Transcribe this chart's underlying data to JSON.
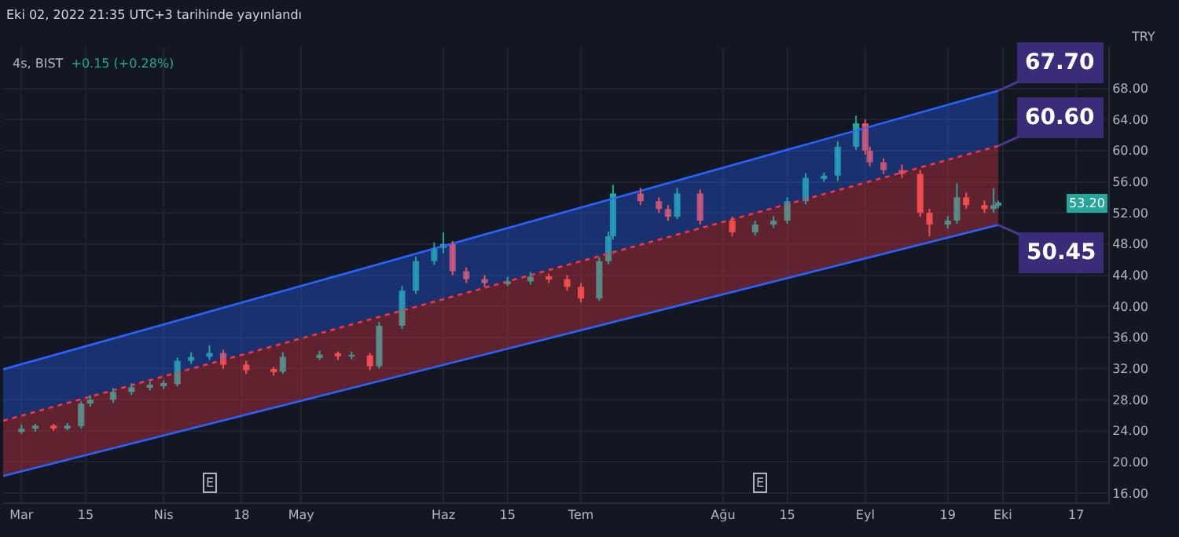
{
  "chart_data": {
    "type": "candlestick",
    "title": "4s, BIST",
    "subtitle": "+0.15 (+0.28%)",
    "ylabel": "TRY",
    "annotations": [
      "Eki 02, 2022 21:35 UTC+3 tarihinde yayınlandı",
      {
        "text": "67.70",
        "x": "2022-09-30",
        "y": 67.7
      },
      {
        "text": "60.60",
        "x": "2022-09-30",
        "y": 60.6
      },
      {
        "text": "50.45",
        "x": "2022-09-30",
        "y": 50.45
      },
      "53.20",
      {
        "text": "E",
        "x": "2022-04-11",
        "y": 17.4
      },
      {
        "text": "E",
        "x": "2022-08-09",
        "y": 17.4
      }
    ],
    "colors": [
      "#26a69a",
      "#26a69a",
      "#ef5350",
      "#26a69a",
      "#26a69a",
      "#26a69a",
      "#26a69a",
      "#26a69a",
      "#26a69a",
      "#26a69a",
      "#26a69a",
      "#26a69a",
      "#26a69a",
      "#ef5350",
      "#ef5350",
      "#ef5350",
      "#26a69a",
      "#26a69a",
      "#ef5350",
      "#26a69a",
      "#ef5350",
      "#26a69a",
      "#26a69a",
      "#26a69a",
      "#26a69a",
      "#26a69a",
      "#ef5350",
      "#ef5350",
      "#ef5350",
      "#26a69a",
      "#26a69a",
      "#ef5350",
      "#ef5350",
      "#ef5350",
      "#26a69a",
      "#26a69a",
      "#26a69a",
      "#ef5350",
      "#ef5350",
      "#ef5350",
      "#26a69a",
      "#ef5350",
      "#ef5350",
      "#26a69a",
      "#26a69a",
      "#26a69a",
      "#26a69a",
      "#26a69a",
      "#26a69a",
      "#26a69a",
      "#ef5350",
      "#ef5350",
      "#ef5350",
      "#ef5350",
      "#ef5350",
      "#ef5350",
      "#26a69a",
      "#26a69a",
      "#ef5350",
      "#ef5350",
      "#26a69a",
      "#26a69a"
    ],
    "x": [
      "2022-03-01",
      "2022-03-04",
      "2022-03-08",
      "2022-03-11",
      "2022-03-14",
      "2022-03-16",
      "2022-03-21",
      "2022-03-25",
      "2022-03-29",
      "2022-04-01",
      "2022-04-04",
      "2022-04-07",
      "2022-04-11",
      "2022-04-14",
      "2022-04-19",
      "2022-04-25",
      "2022-04-27",
      "2022-05-05",
      "2022-05-09",
      "2022-05-12",
      "2022-05-16",
      "2022-05-18",
      "2022-05-23",
      "2022-05-26",
      "2022-05-30",
      "2022-06-01",
      "2022-06-03",
      "2022-06-06",
      "2022-06-10",
      "2022-06-15",
      "2022-06-20",
      "2022-06-24",
      "2022-06-28",
      "2022-07-01",
      "2022-07-05",
      "2022-07-07",
      "2022-07-08",
      "2022-07-14",
      "2022-07-18",
      "2022-07-20",
      "2022-07-22",
      "2022-07-27",
      "2022-08-03",
      "2022-08-08",
      "2022-08-12",
      "2022-08-15",
      "2022-08-19",
      "2022-08-23",
      "2022-08-26",
      "2022-08-30",
      "2022-09-01",
      "2022-09-02",
      "2022-09-05",
      "2022-09-09",
      "2022-09-13",
      "2022-09-15",
      "2022-09-19",
      "2022-09-21",
      "2022-09-23",
      "2022-09-27",
      "2022-09-29",
      "2022-09-30"
    ],
    "ohlc": [
      [
        24.0,
        24.8,
        23.6,
        24.3
      ],
      [
        24.3,
        24.9,
        23.9,
        24.5
      ],
      [
        24.5,
        24.9,
        24.0,
        24.4
      ],
      [
        24.4,
        25.0,
        24.1,
        24.6
      ],
      [
        24.6,
        27.8,
        24.3,
        27.5
      ],
      [
        27.5,
        28.6,
        27.1,
        28.0
      ],
      [
        28.0,
        29.5,
        27.6,
        29.0
      ],
      [
        29.0,
        30.1,
        28.6,
        29.6
      ],
      [
        29.6,
        30.3,
        29.2,
        29.8
      ],
      [
        29.8,
        30.5,
        29.4,
        30.0
      ],
      [
        30.0,
        33.4,
        29.7,
        33.0
      ],
      [
        33.0,
        34.1,
        32.6,
        33.5
      ],
      [
        33.5,
        35.0,
        33.1,
        34.0
      ],
      [
        34.0,
        34.4,
        32.0,
        32.5
      ],
      [
        32.5,
        33.0,
        31.3,
        31.8
      ],
      [
        31.8,
        32.2,
        31.1,
        31.6
      ],
      [
        31.6,
        34.1,
        31.3,
        33.5
      ],
      [
        33.5,
        34.3,
        33.1,
        33.8
      ],
      [
        33.8,
        34.2,
        33.1,
        33.6
      ],
      [
        33.6,
        34.2,
        33.2,
        33.7
      ],
      [
        33.7,
        34.0,
        31.8,
        32.3
      ],
      [
        32.3,
        38.0,
        32.0,
        37.5
      ],
      [
        37.5,
        42.6,
        37.1,
        42.0
      ],
      [
        42.0,
        46.4,
        41.6,
        45.8
      ],
      [
        45.8,
        48.2,
        45.3,
        47.5
      ],
      [
        47.5,
        49.5,
        46.8,
        48.0
      ],
      [
        48.0,
        48.4,
        44.0,
        44.5
      ],
      [
        44.5,
        45.0,
        43.0,
        43.5
      ],
      [
        43.5,
        44.0,
        42.5,
        43.0
      ],
      [
        43.0,
        43.8,
        42.6,
        43.2
      ],
      [
        43.2,
        44.4,
        42.8,
        43.8
      ],
      [
        43.8,
        44.2,
        43.0,
        43.5
      ],
      [
        43.5,
        44.0,
        42.0,
        42.5
      ],
      [
        42.5,
        43.0,
        40.5,
        41.0
      ],
      [
        41.0,
        46.3,
        40.7,
        45.8
      ],
      [
        45.8,
        49.6,
        45.4,
        49.0
      ],
      [
        49.0,
        55.6,
        48.6,
        54.5
      ],
      [
        54.5,
        55.2,
        53.0,
        53.5
      ],
      [
        53.5,
        54.0,
        52.0,
        52.5
      ],
      [
        52.5,
        53.0,
        51.0,
        51.5
      ],
      [
        51.5,
        55.2,
        51.2,
        54.5
      ],
      [
        54.5,
        55.0,
        50.5,
        51.0
      ],
      [
        51.0,
        51.5,
        49.0,
        49.5
      ],
      [
        49.5,
        51.0,
        49.1,
        50.5
      ],
      [
        50.5,
        51.6,
        50.1,
        51.0
      ],
      [
        51.0,
        54.0,
        50.6,
        53.5
      ],
      [
        53.5,
        57.1,
        53.1,
        56.5
      ],
      [
        56.5,
        57.2,
        56.0,
        56.8
      ],
      [
        56.8,
        61.2,
        56.1,
        60.5
      ],
      [
        60.5,
        64.5,
        60.1,
        63.5
      ],
      [
        63.5,
        64.0,
        59.5,
        60.0
      ],
      [
        60.0,
        60.5,
        58.0,
        58.5
      ],
      [
        58.5,
        59.0,
        57.0,
        57.5
      ],
      [
        57.5,
        58.2,
        56.5,
        57.0
      ],
      [
        57.0,
        57.5,
        51.5,
        52.0
      ],
      [
        52.0,
        52.5,
        49.0,
        50.5
      ],
      [
        50.5,
        51.6,
        50.0,
        51.0
      ],
      [
        51.0,
        55.8,
        50.6,
        54.0
      ],
      [
        54.0,
        54.6,
        52.5,
        53.0
      ],
      [
        53.0,
        53.6,
        52.0,
        52.5
      ],
      [
        52.5,
        55.2,
        52.0,
        53.0
      ],
      [
        53.0,
        53.6,
        52.6,
        53.2
      ]
    ],
    "series": [
      {
        "type": "area",
        "color": "#2962ff",
        "x": [
          "2022-02-25",
          "2022-09-30"
        ],
        "values": [
          31.9,
          67.7
        ]
      },
      {
        "type": "area",
        "color": "#f23645",
        "line_style": "dotted",
        "x": [
          "2022-02-25",
          "2022-09-30"
        ],
        "values": [
          25.3,
          60.6
        ]
      },
      {
        "type": "line",
        "color": "#2962ff",
        "x": [
          "2022-02-25",
          "2022-09-30"
        ],
        "values": [
          18.2,
          50.45
        ]
      }
    ],
    "xlim": [
      "2022-02-25",
      "2022-10-24"
    ],
    "xticks": [
      {
        "value": "2022-03-01",
        "label": "Mar"
      },
      {
        "value": "2022-03-15",
        "label": "15"
      },
      {
        "value": "2022-04-01",
        "label": "Nis"
      },
      {
        "value": "2022-04-18",
        "label": "18"
      },
      {
        "value": "2022-05-01",
        "label": "May"
      },
      {
        "value": "2022-06-01",
        "label": "Haz"
      },
      {
        "value": "2022-06-15",
        "label": "15"
      },
      {
        "value": "2022-07-01",
        "label": "Tem"
      },
      {
        "value": "2022-08-01",
        "label": "Ağu"
      },
      {
        "value": "2022-08-15",
        "label": "15"
      },
      {
        "value": "2022-09-01",
        "label": "Eyl"
      },
      {
        "value": "2022-09-19",
        "label": "19"
      },
      {
        "value": "2022-10-01",
        "label": "Eki"
      },
      {
        "value": "2022-10-17",
        "label": "17"
      }
    ],
    "ylim": [
      14.8,
      73.3
    ],
    "yticks": [
      {
        "value": 16,
        "label": "16.00"
      },
      {
        "value": 20,
        "label": "20.00"
      },
      {
        "value": 24,
        "label": "24.00"
      },
      {
        "value": 28,
        "label": "28.00"
      },
      {
        "value": 32,
        "label": "32.00"
      },
      {
        "value": 36,
        "label": "36.00"
      },
      {
        "value": 40,
        "label": "40.00"
      },
      {
        "value": 44,
        "label": "44.00"
      },
      {
        "value": 48,
        "label": "48.00"
      },
      {
        "value": 52,
        "label": "52.00"
      },
      {
        "value": 56,
        "label": "56.00"
      },
      {
        "value": 60,
        "label": "60.00"
      },
      {
        "value": 64,
        "label": "64.00"
      },
      {
        "value": 68,
        "label": "68.00"
      }
    ],
    "grid": true
  }
}
